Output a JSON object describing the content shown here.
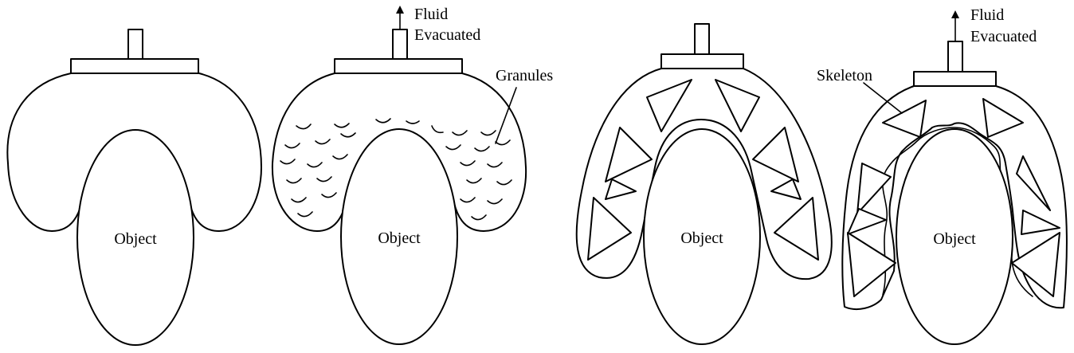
{
  "panels": [
    {
      "object_label": "Object"
    },
    {
      "object_label": "Object",
      "fluid_label": [
        "Fluid",
        "Evacuated"
      ],
      "granules_label": "Granules"
    },
    {
      "object_label": "Object"
    },
    {
      "object_label": "Object",
      "fluid_label": [
        "Fluid",
        "Evacuated"
      ],
      "skeleton_label": "Skeleton"
    }
  ]
}
